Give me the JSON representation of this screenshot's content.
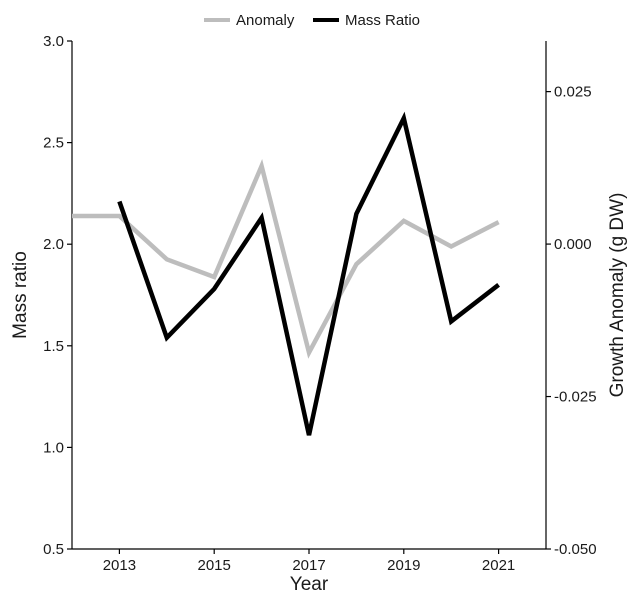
{
  "chart_data": {
    "type": "line",
    "title": "",
    "xlabel": "Year",
    "ylabel_left": "Mass ratio",
    "ylabel_right": "Growth Anomaly (g DW)",
    "x": [
      2012,
      2013,
      2014,
      2015,
      2016,
      2017,
      2018,
      2019,
      2020,
      2021
    ],
    "xlim": [
      2012,
      2022
    ],
    "xticks": [
      "2013",
      "2015",
      "2017",
      "2019",
      "2021"
    ],
    "ylim_left": [
      0.5,
      3.0
    ],
    "yticks_left": [
      "0.5",
      "1.0",
      "1.5",
      "2.0",
      "2.5",
      "3.0"
    ],
    "ylim_right": [
      -0.05,
      0.0333
    ],
    "yticks_right": [
      "-0.050",
      "-0.025",
      "0.000",
      "0.025"
    ],
    "legend_position": "top",
    "grid": false,
    "series": [
      {
        "name": "Anomaly",
        "axis": "right",
        "color": "#bdbdbd",
        "values": [
          0.0046,
          0.0046,
          -0.0025,
          -0.0054,
          0.0128,
          -0.0178,
          -0.0033,
          0.0038,
          -0.0004,
          0.0036
        ]
      },
      {
        "name": "Mass Ratio",
        "axis": "left",
        "color": "#000000",
        "values": [
          null,
          2.21,
          1.54,
          1.78,
          2.13,
          1.06,
          2.15,
          2.62,
          1.62,
          1.8
        ]
      }
    ]
  }
}
